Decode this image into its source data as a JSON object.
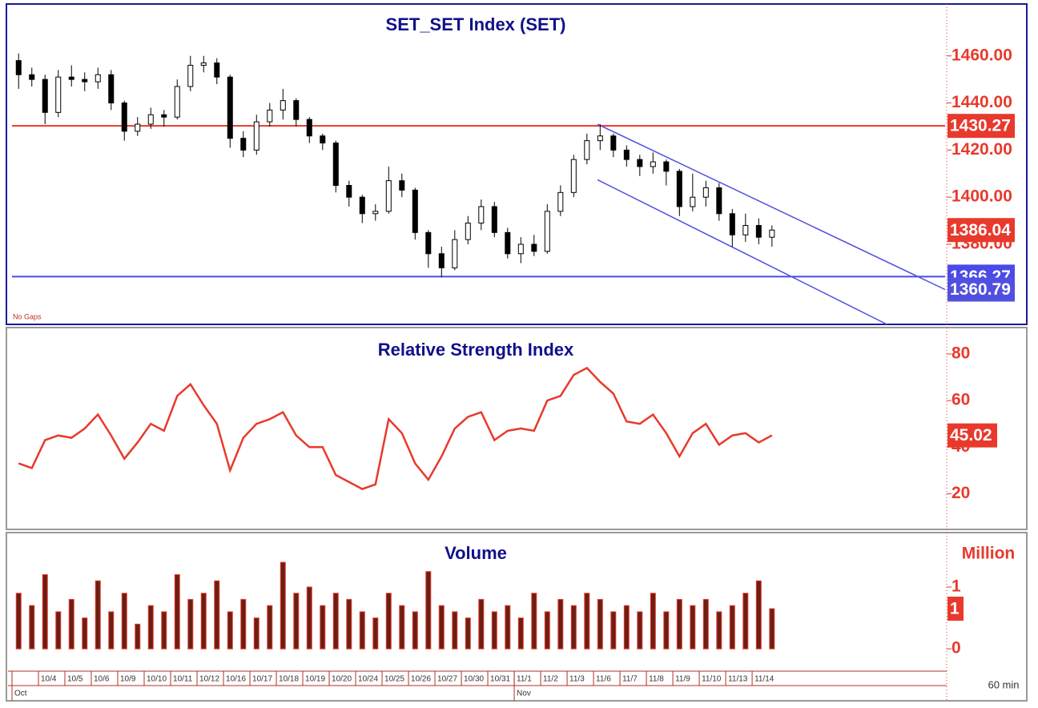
{
  "chart_data": [
    {
      "type": "candlestick",
      "title": "SET_SET  Index  (SET)",
      "gap_mode": "No Gaps",
      "interval": "60 min",
      "categories": [
        null,
        null,
        "10/4",
        null,
        "10/5",
        null,
        "10/6",
        null,
        "10/9",
        null,
        "10/10",
        null,
        "10/11",
        null,
        "10/12",
        null,
        "10/16",
        null,
        "10/17",
        null,
        "10/18",
        null,
        "10/19",
        null,
        "10/20",
        null,
        "10/24",
        null,
        "10/25",
        null,
        "10/26",
        null,
        "10/27",
        null,
        "10/30",
        null,
        "10/31",
        null,
        "11/1",
        null,
        "11/2",
        null,
        "11/3",
        null,
        "11/6",
        null,
        "11/7",
        null,
        "11/8",
        null,
        "11/9",
        null,
        "11/10",
        null,
        "11/13",
        null,
        "11/14",
        null
      ],
      "months": [
        {
          "index": 0,
          "label": "Oct"
        },
        {
          "index": 38,
          "label": "Nov"
        }
      ],
      "open": [
        1458,
        1452,
        1450,
        1436,
        1451,
        1450,
        1449,
        1452,
        1440,
        1428,
        1431,
        1435,
        1434,
        1447,
        1456,
        1457,
        1451,
        1425,
        1420,
        1432,
        1437,
        1441,
        1433,
        1426,
        1423,
        1405,
        1400,
        1393,
        1394,
        1407,
        1403,
        1385,
        1376,
        1370,
        1382,
        1389,
        1396,
        1385,
        1376,
        1380,
        1377,
        1394,
        1402,
        1416,
        1424,
        1426,
        1420,
        1416,
        1413,
        1415,
        1411,
        1396,
        1400,
        1404,
        1393,
        1384,
        1388,
        1383
      ],
      "high": [
        1461,
        1455,
        1452,
        1454,
        1456,
        1453,
        1455,
        1454,
        1441,
        1434,
        1438,
        1437,
        1450,
        1460,
        1460,
        1459,
        1452,
        1428,
        1435,
        1440,
        1446,
        1442,
        1434,
        1427,
        1424,
        1407,
        1401,
        1397,
        1413,
        1410,
        1404,
        1386,
        1379,
        1386,
        1392,
        1399,
        1398,
        1387,
        1383,
        1384,
        1397,
        1405,
        1418,
        1427,
        1431,
        1427,
        1422,
        1418,
        1419,
        1416,
        1412,
        1410,
        1407,
        1406,
        1395,
        1393,
        1391,
        1388
      ],
      "low": [
        1446,
        1447,
        1431,
        1434,
        1447,
        1445,
        1446,
        1437,
        1424,
        1426,
        1429,
        1430,
        1433,
        1445,
        1453,
        1448,
        1421,
        1417,
        1418,
        1430,
        1433,
        1430,
        1423,
        1420,
        1402,
        1396,
        1389,
        1390,
        1393,
        1400,
        1382,
        1370,
        1366,
        1369,
        1380,
        1386,
        1383,
        1374,
        1372,
        1375,
        1376,
        1392,
        1400,
        1414,
        1420,
        1417,
        1413,
        1409,
        1410,
        1405,
        1392,
        1394,
        1396,
        1390,
        1379,
        1381,
        1380,
        1379
      ],
      "close": [
        1452,
        1450,
        1436,
        1451,
        1450,
        1449,
        1452,
        1440,
        1428,
        1431,
        1435,
        1434,
        1447,
        1456,
        1457,
        1451,
        1425,
        1420,
        1432,
        1437,
        1441,
        1433,
        1426,
        1423,
        1405,
        1400,
        1393,
        1394,
        1407,
        1403,
        1385,
        1376,
        1370,
        1382,
        1389,
        1396,
        1385,
        1376,
        1380,
        1377,
        1394,
        1402,
        1416,
        1424,
        1426,
        1420,
        1416,
        1413,
        1415,
        1411,
        1396,
        1400,
        1404,
        1393,
        1384,
        1388,
        1383,
        1386.04
      ],
      "xlim": [
        0,
        70.6
      ],
      "ylim": [
        1346,
        1481
      ],
      "yticks": [
        {
          "value": 1460,
          "label": "1460.00"
        },
        {
          "value": 1440,
          "label": "1440.00"
        },
        {
          "value": 1420,
          "label": "1420.00"
        },
        {
          "value": 1400,
          "label": "1400.00"
        },
        {
          "value": 1380,
          "label": "1380.00"
        }
      ],
      "hlines": [
        {
          "value": 1430.27,
          "color": "#e8392c"
        },
        {
          "value": 1366.27,
          "color": "#4a4ae8"
        }
      ],
      "trendlines": [
        {
          "start": [
            44.3,
            1431
          ],
          "end": [
            70.6,
            1360.79
          ],
          "color": "#5050e0"
        },
        {
          "start": [
            44.3,
            1407.4
          ],
          "end": [
            66.2,
            1346
          ],
          "color": "#5050e0"
        }
      ]
    },
    {
      "type": "line",
      "title": "Relative  Strength  Index",
      "color": "#e8392c",
      "values": [
        33,
        31,
        43,
        45,
        44,
        48,
        54,
        45,
        35,
        42,
        50,
        47,
        62,
        67,
        58,
        50,
        30,
        44,
        50,
        52,
        55,
        45,
        40,
        40,
        28,
        25,
        22,
        24,
        52,
        46,
        33,
        26,
        36,
        48,
        53,
        55,
        43,
        47,
        48,
        47,
        60,
        62,
        71,
        74,
        68,
        63,
        51,
        50,
        54,
        46,
        36,
        46,
        50,
        41,
        45,
        46,
        42,
        45.02
      ],
      "ylim": [
        5,
        91
      ],
      "yticks": [
        20,
        40,
        60,
        80
      ]
    },
    {
      "type": "bar",
      "title": "Volume",
      "y_label": "Million",
      "color": "#6b1f14",
      "edge_color": "#e8392c",
      "values": [
        0.9,
        0.7,
        1.2,
        0.6,
        0.8,
        0.5,
        1.1,
        0.6,
        0.9,
        0.4,
        0.7,
        0.6,
        1.2,
        0.8,
        0.9,
        1.1,
        0.6,
        0.8,
        0.5,
        0.7,
        1.4,
        0.9,
        1.0,
        0.7,
        0.9,
        0.8,
        0.6,
        0.5,
        0.9,
        0.7,
        0.6,
        1.25,
        0.7,
        0.6,
        0.5,
        0.8,
        0.6,
        0.7,
        0.5,
        0.9,
        0.6,
        0.8,
        0.7,
        0.9,
        0.8,
        0.6,
        0.7,
        0.6,
        0.9,
        0.6,
        0.8,
        0.7,
        0.8,
        0.6,
        0.7,
        0.9,
        1.1,
        0.65
      ],
      "last_label": "1",
      "ylim": [
        -0.36,
        1.88
      ],
      "yticks": [
        0,
        1
      ]
    }
  ]
}
